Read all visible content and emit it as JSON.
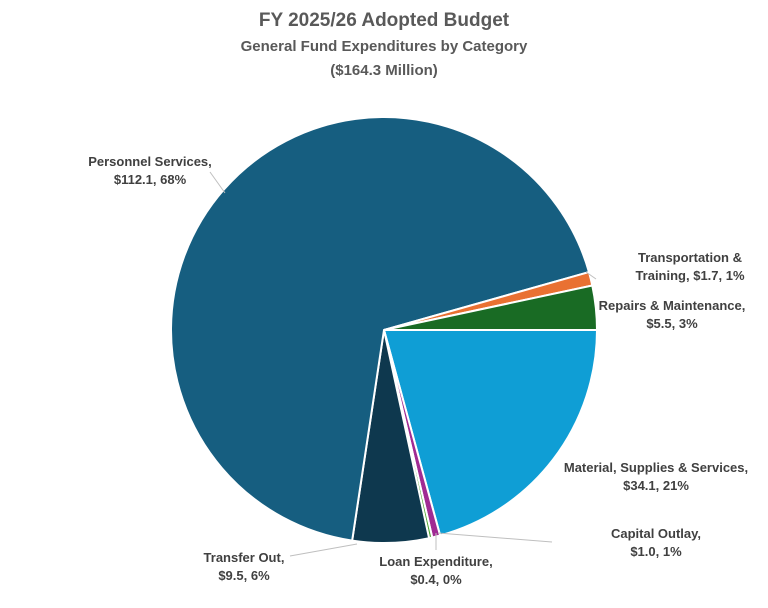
{
  "chart_data": {
    "type": "pie",
    "title": "FY 2025/26 Adopted Budget",
    "subtitle": "General Fund Expenditures by Category",
    "total_label": "($164.3 Million)",
    "slices": [
      {
        "name": "Material, Supplies & Services",
        "value": 34.1,
        "pct": "21%",
        "label1": "Material, Supplies & Services,",
        "label2": "$34.1, 21%",
        "color": "#0F9ED5"
      },
      {
        "name": "Capital Outlay",
        "value": 1.0,
        "pct": "1%",
        "label1": "Capital Outlay,",
        "label2": "$1.0, 1%",
        "color": "#A02B93"
      },
      {
        "name": "Loan Expenditure",
        "value": 0.4,
        "pct": "0%",
        "label1": "Loan Expenditure,",
        "label2": "$0.4, 0%",
        "color": "#4EA72E"
      },
      {
        "name": "Transfer Out",
        "value": 9.5,
        "pct": "6%",
        "label1": "Transfer Out,",
        "label2": "$9.5, 6%",
        "color": "#0E384E"
      },
      {
        "name": "Personnel Services",
        "value": 112.1,
        "pct": "68%",
        "label1": "Personnel Services,",
        "label2": "$112.1, 68%",
        "color": "#165E80"
      },
      {
        "name": "Transportation & Training",
        "value": 1.7,
        "pct": "1%",
        "label1": "Transportation &",
        "label2": "Training, $1.7, 1%",
        "color": "#E97132"
      },
      {
        "name": "Repairs & Maintenance",
        "value": 5.5,
        "pct": "3%",
        "label1": "Repairs & Maintenance,",
        "label2": "$5.5, 3%",
        "color": "#196B24"
      }
    ]
  }
}
